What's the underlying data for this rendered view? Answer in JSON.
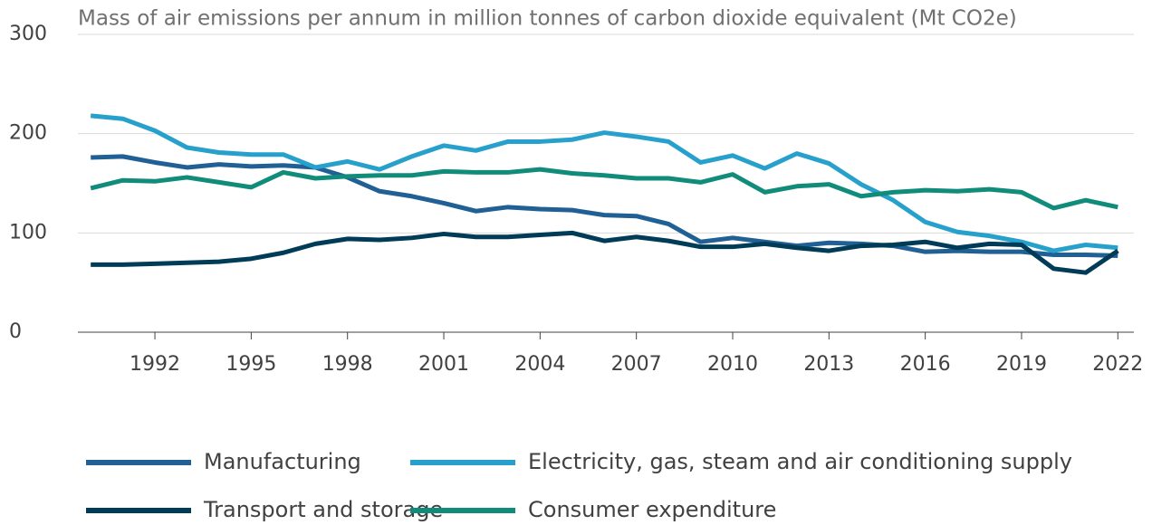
{
  "chart_data": {
    "type": "line",
    "title": "Mass of air emissions per annum in million tonnes of carbon dioxide equivalent (Mt CO2e)",
    "x": [
      1990,
      1991,
      1992,
      1993,
      1994,
      1995,
      1996,
      1997,
      1998,
      1999,
      2000,
      2001,
      2002,
      2003,
      2004,
      2005,
      2006,
      2007,
      2008,
      2009,
      2010,
      2011,
      2012,
      2013,
      2014,
      2015,
      2016,
      2017,
      2018,
      2019,
      2020,
      2021,
      2022
    ],
    "series": [
      {
        "name": "Manufacturing",
        "color": "#206095",
        "values": [
          176,
          177,
          171,
          166,
          169,
          167,
          168,
          166,
          156,
          142,
          137,
          130,
          122,
          126,
          124,
          123,
          118,
          117,
          109,
          91,
          95,
          91,
          87,
          90,
          89,
          87,
          81,
          82,
          81,
          81,
          78,
          78,
          77
        ]
      },
      {
        "name": "Electricity, gas, steam and air conditioning supply",
        "color": "#27a0cc",
        "values": [
          218,
          215,
          203,
          186,
          181,
          179,
          179,
          166,
          172,
          164,
          177,
          188,
          183,
          192,
          192,
          194,
          201,
          197,
          192,
          171,
          178,
          165,
          180,
          170,
          149,
          133,
          111,
          101,
          97,
          91,
          82,
          88,
          85
        ]
      },
      {
        "name": "Transport and storage",
        "color": "#003c57",
        "values": [
          68,
          68,
          69,
          70,
          71,
          74,
          80,
          89,
          94,
          93,
          95,
          99,
          96,
          96,
          98,
          100,
          92,
          96,
          92,
          86,
          86,
          89,
          85,
          82,
          87,
          88,
          91,
          85,
          89,
          88,
          64,
          60,
          82
        ]
      },
      {
        "name": "Consumer expenditure",
        "color": "#118c7b",
        "values": [
          145,
          153,
          152,
          156,
          151,
          146,
          161,
          155,
          157,
          158,
          158,
          162,
          161,
          161,
          164,
          160,
          158,
          155,
          155,
          151,
          159,
          141,
          147,
          149,
          137,
          141,
          143,
          142,
          144,
          141,
          125,
          133,
          126
        ]
      }
    ],
    "xlim": [
      1989.6,
      2022.5
    ],
    "xticks": [
      1992,
      1995,
      1998,
      2001,
      2004,
      2007,
      2010,
      2013,
      2016,
      2019,
      2022
    ],
    "ylim": [
      0,
      300
    ],
    "yticks": [
      0,
      100,
      200,
      300
    ],
    "grid": true,
    "legend": "bottom"
  }
}
